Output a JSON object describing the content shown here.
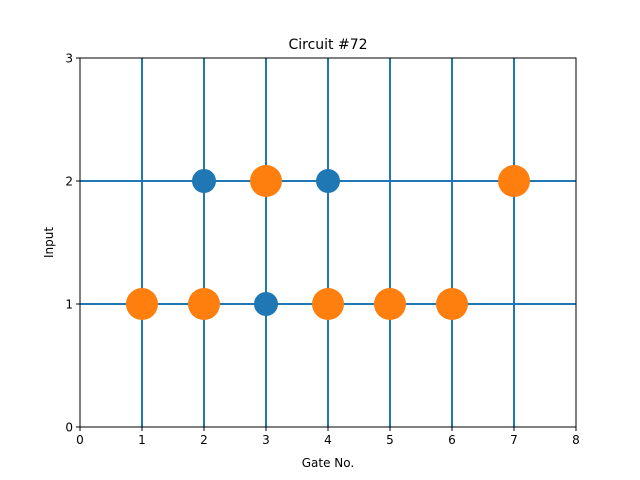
{
  "chart_data": {
    "type": "scatter",
    "title": "Circuit #72",
    "xlabel": "Gate No.",
    "ylabel": "Input",
    "xlim": [
      0,
      8
    ],
    "ylim": [
      0,
      3
    ],
    "xticks": [
      "0",
      "1",
      "2",
      "3",
      "4",
      "5",
      "6",
      "7",
      "8"
    ],
    "yticks": [
      "0",
      "1",
      "2",
      "3"
    ],
    "vertical_lines_x": [
      1,
      2,
      3,
      4,
      5,
      6,
      7
    ],
    "horizontal_lines_y": [
      1,
      2
    ],
    "line_color": "#1f77b4",
    "series": [
      {
        "color": "#1f77b4",
        "marker": "small circle",
        "points": [
          [
            2,
            2
          ],
          [
            4,
            2
          ],
          [
            3,
            1
          ]
        ]
      },
      {
        "color": "#ff7f0e",
        "marker": "large circle",
        "points": [
          [
            3,
            2
          ],
          [
            7,
            2
          ],
          [
            1,
            1
          ],
          [
            2,
            1
          ],
          [
            4,
            1
          ],
          [
            5,
            1
          ],
          [
            6,
            1
          ]
        ]
      }
    ]
  }
}
